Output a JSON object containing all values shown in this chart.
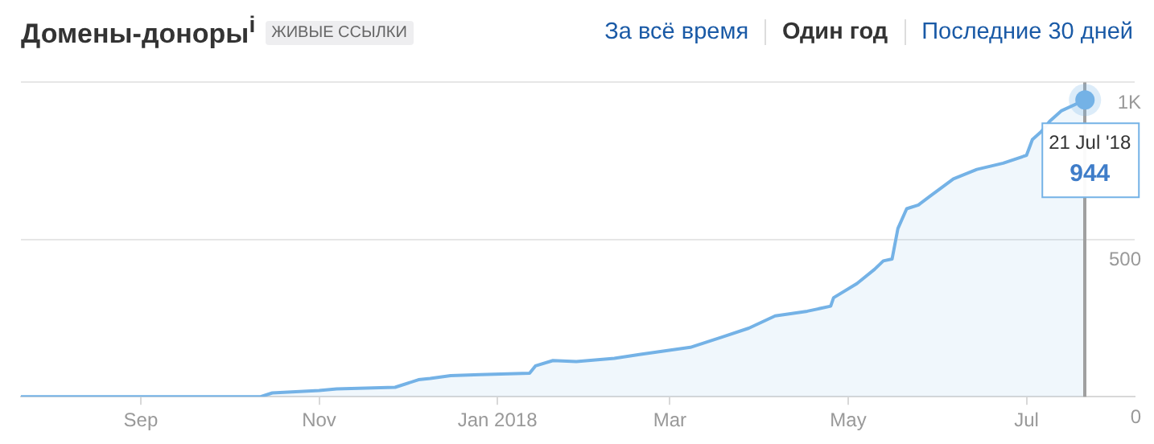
{
  "chart_data": {
    "type": "area",
    "title": "Домены-доноры$^{i}$",
    "subtitle": "ЖИВЫЕ ССЫЛКИ",
    "annotations": [
      "За всё время",
      "Один год",
      "Последние 30 дней",
      {
        "text": "21 Jul '18",
        "x": "2018-07-21",
        "y": 944
      },
      {
        "text": "944",
        "x": "2018-07-21",
        "y": 944
      }
    ],
    "ref_lines": [
      {
        "axis": "x",
        "value": "2018-07-21",
        "label": null,
        "color": "#a0a0a0"
      }
    ],
    "x": [
      "2017-07-22",
      "2017-10-12",
      "2017-10-16",
      "2017-11-01",
      "2017-11-07",
      "2017-11-27",
      "2017-12-05",
      "2017-12-09",
      "2017-12-16",
      "2017-12-26",
      "2018-01-12",
      "2018-01-14",
      "2018-01-20",
      "2018-01-28",
      "2018-02-10",
      "2018-02-19",
      "2018-03-08",
      "2018-03-19",
      "2018-03-28",
      "2018-04-06",
      "2018-04-17",
      "2018-04-25",
      "2018-04-26",
      "2018-05-04",
      "2018-05-10",
      "2018-05-13",
      "2018-05-16",
      "2018-05-18",
      "2018-05-21",
      "2018-05-25",
      "2018-05-29",
      "2018-06-06",
      "2018-06-14",
      "2018-06-23",
      "2018-07-01",
      "2018-07-03",
      "2018-07-06",
      "2018-07-09",
      "2018-07-13",
      "2018-07-21"
    ],
    "series": [
      {
        "color": "#74b2e6",
        "values": [
          0,
          0,
          12,
          20,
          25,
          30,
          54,
          58,
          67,
          70,
          75,
          98,
          115,
          112,
          122,
          135,
          157,
          190,
          218,
          257,
          272,
          288,
          315,
          360,
          405,
          432,
          438,
          535,
          598,
          610,
          638,
          693,
          723,
          743,
          768,
          818,
          843,
          877,
          910,
          944
        ]
      }
    ],
    "xlim": [
      "2017-07-22",
      "2018-08-07"
    ],
    "xticks": [
      {
        "value": "2017-09-01",
        "label": "Sep"
      },
      {
        "value": "2017-11-01",
        "label": "Nov"
      },
      {
        "value": "2018-01-01",
        "label": "Jan 2018"
      },
      {
        "value": "2018-03-01",
        "label": "Mar"
      },
      {
        "value": "2018-05-01",
        "label": "May"
      },
      {
        "value": "2018-07-01",
        "label": "Jul"
      }
    ],
    "ylim": [
      0,
      1000
    ],
    "yticks": [
      0,
      500,
      {
        "value": 1000,
        "label": "1K"
      }
    ],
    "grid": "y",
    "legend": false,
    "marker": "none"
  }
}
